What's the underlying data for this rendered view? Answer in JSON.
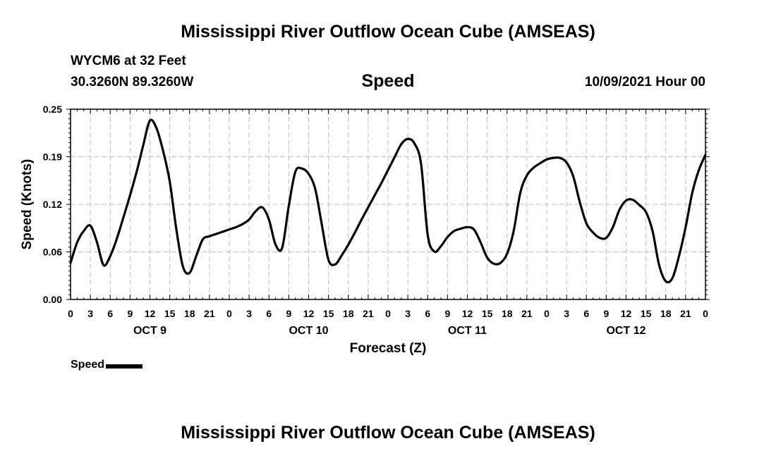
{
  "page": {
    "title_top": "Mississippi River Outflow Ocean Cube (AMSEAS)",
    "title_bottom": "Mississippi River Outflow Ocean Cube (AMSEAS)",
    "station": "WYCM6 at 32 Feet",
    "coords": "30.3260N  89.3260W",
    "variable": "Speed",
    "datetime": "10/09/2021 Hour 00"
  },
  "chart_data": {
    "type": "line",
    "title": "Speed",
    "xlabel": "Forecast (Z)",
    "ylabel": "Speed (Knots)",
    "ylim": [
      0,
      0.25
    ],
    "xlim": [
      0,
      96
    ],
    "x_unit": "hours from 10/09/2021 00Z",
    "grid": true,
    "y_ticks": [
      {
        "value": 0,
        "label": "0.00"
      },
      {
        "value": 0.0625,
        "label": "0.06"
      },
      {
        "value": 0.125,
        "label": "0.12"
      },
      {
        "value": 0.1875,
        "label": "0.19"
      },
      {
        "value": 0.25,
        "label": "0.25"
      }
    ],
    "x_tick_labels": [
      "0",
      "3",
      "6",
      "9",
      "12",
      "15",
      "18",
      "21",
      "0",
      "3",
      "6",
      "9",
      "12",
      "15",
      "18",
      "21",
      "0",
      "3",
      "6",
      "9",
      "12",
      "15",
      "18",
      "21",
      "0",
      "3",
      "6",
      "9",
      "12",
      "15",
      "18",
      "21",
      "0"
    ],
    "day_labels": [
      {
        "hour": 12,
        "label": "OCT 9"
      },
      {
        "hour": 36,
        "label": "OCT 10"
      },
      {
        "hour": 60,
        "label": "OCT 11"
      },
      {
        "hour": 84,
        "label": "OCT 12"
      }
    ],
    "legend": [
      {
        "name": "Speed",
        "position": "bottom-left"
      }
    ],
    "series": [
      {
        "name": "Speed",
        "x": [
          0,
          1,
          2,
          3,
          4,
          5,
          6,
          7,
          8,
          9,
          10,
          11,
          12,
          13,
          14,
          15,
          16,
          17,
          18,
          19,
          20,
          21,
          22,
          23,
          24,
          25,
          26,
          27,
          28,
          29,
          30,
          31,
          32,
          33,
          34,
          35,
          36,
          37,
          38,
          39,
          40,
          41,
          42,
          43,
          44,
          45,
          46,
          47,
          48,
          49,
          50,
          51,
          52,
          53,
          54,
          55,
          56,
          57,
          58,
          59,
          60,
          61,
          62,
          63,
          64,
          65,
          66,
          67,
          68,
          69,
          70,
          71,
          72,
          73,
          74,
          75,
          76,
          77,
          78,
          79,
          80,
          81,
          82,
          83,
          84,
          85,
          86,
          87,
          88,
          89,
          90,
          91,
          92,
          93,
          94,
          95,
          96
        ],
        "y": [
          0.048,
          0.075,
          0.09,
          0.097,
          0.075,
          0.045,
          0.057,
          0.08,
          0.108,
          0.137,
          0.168,
          0.203,
          0.235,
          0.225,
          0.195,
          0.155,
          0.092,
          0.043,
          0.035,
          0.057,
          0.079,
          0.083,
          0.086,
          0.089,
          0.092,
          0.095,
          0.099,
          0.105,
          0.116,
          0.121,
          0.105,
          0.072,
          0.068,
          0.123,
          0.168,
          0.172,
          0.165,
          0.145,
          0.098,
          0.052,
          0.046,
          0.058,
          0.072,
          0.088,
          0.105,
          0.121,
          0.137,
          0.153,
          0.17,
          0.187,
          0.204,
          0.211,
          0.205,
          0.178,
          0.085,
          0.063,
          0.07,
          0.082,
          0.09,
          0.093,
          0.095,
          0.092,
          0.075,
          0.055,
          0.047,
          0.048,
          0.06,
          0.09,
          0.14,
          0.163,
          0.173,
          0.179,
          0.184,
          0.186,
          0.186,
          0.18,
          0.162,
          0.128,
          0.1,
          0.088,
          0.081,
          0.081,
          0.095,
          0.118,
          0.13,
          0.131,
          0.124,
          0.115,
          0.09,
          0.045,
          0.024,
          0.028,
          0.057,
          0.095,
          0.14,
          0.17,
          0.19
        ]
      }
    ]
  }
}
